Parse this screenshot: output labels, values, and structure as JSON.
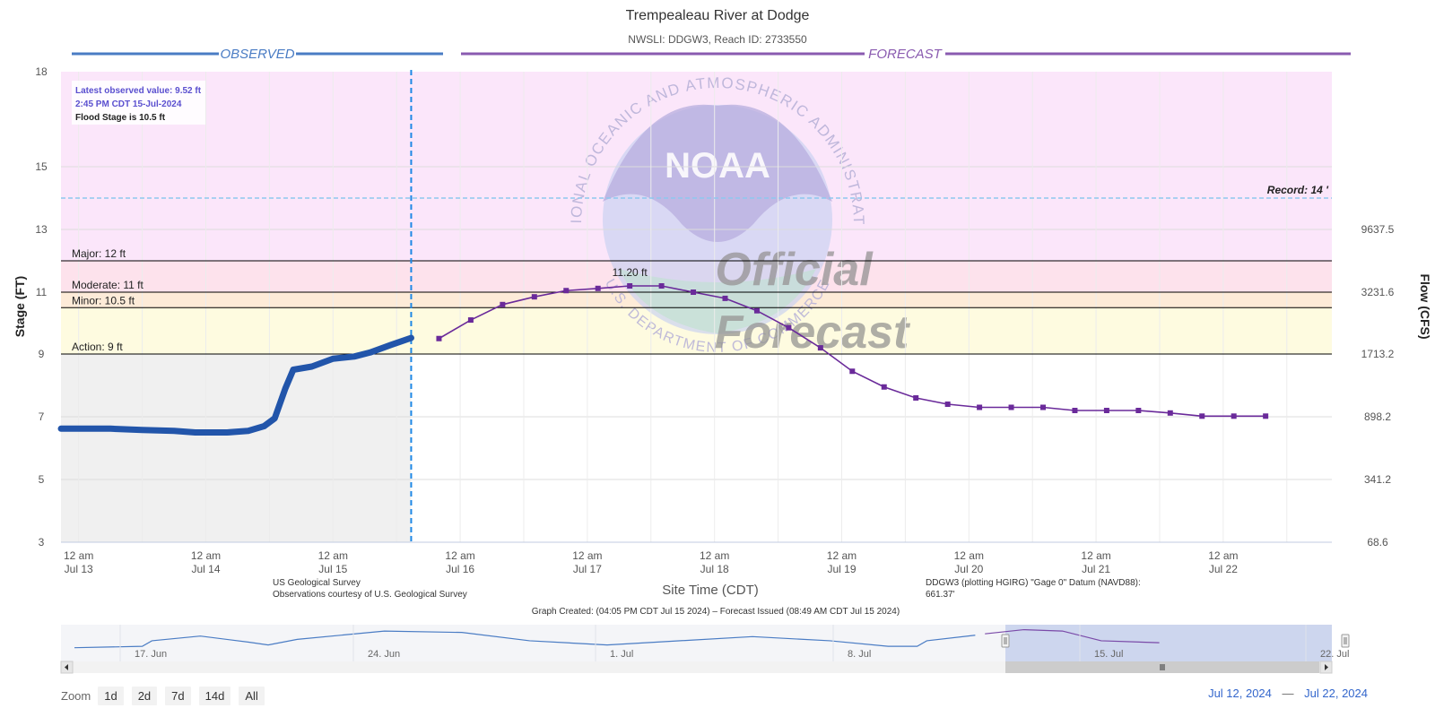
{
  "colors": {
    "observed": "#2255aa",
    "forecast": "#6a2a9a",
    "observed_label": "#4a7cc4",
    "forecast_label": "#8a5bb0",
    "record_zone": "#fbe6fa",
    "major_zone": "#fde2ec",
    "moderate_zone": "#fdebd8",
    "minor_zone": "#fefbe0",
    "observed_bg": "#f0f0f0",
    "record_line": "#8ec8ee",
    "divider": "#1e88e5",
    "info_text": "#5a4fcf"
  },
  "chart_data": {
    "type": "line",
    "title": "Trempealeau River at Dodge",
    "subtitle": "NWSLI: DDGW3, Reach ID: 2733550",
    "section_observed": "OBSERVED",
    "section_forecast": "FORECAST",
    "ylabel": "Stage (FT)",
    "y2label": "Flow (CFS)",
    "xlabel": "Site Time (CDT)",
    "ylim": [
      3,
      18
    ],
    "y_ticks": [
      3,
      5,
      7,
      9,
      11,
      13,
      15,
      18
    ],
    "y2_ticks": [
      {
        "stage": 3,
        "label": "68.6"
      },
      {
        "stage": 5,
        "label": "341.2"
      },
      {
        "stage": 7,
        "label": "898.2"
      },
      {
        "stage": 9,
        "label": "1713.2"
      },
      {
        "stage": 11,
        "label": "3231.6"
      },
      {
        "stage": 13,
        "label": "9637.5"
      }
    ],
    "x_range": [
      "Jul 12 20:40",
      "Jul 22 20:30"
    ],
    "x_ticks": [
      {
        "t": "Jul 13 00:00",
        "line1": "12 am",
        "line2": "Jul 13"
      },
      {
        "t": "Jul 14 00:00",
        "line1": "12 am",
        "line2": "Jul 14"
      },
      {
        "t": "Jul 15 00:00",
        "line1": "12 am",
        "line2": "Jul 15"
      },
      {
        "t": "Jul 16 00:00",
        "line1": "12 am",
        "line2": "Jul 16"
      },
      {
        "t": "Jul 17 00:00",
        "line1": "12 am",
        "line2": "Jul 17"
      },
      {
        "t": "Jul 18 00:00",
        "line1": "12 am",
        "line2": "Jul 18"
      },
      {
        "t": "Jul 19 00:00",
        "line1": "12 am",
        "line2": "Jul 19"
      },
      {
        "t": "Jul 20 00:00",
        "line1": "12 am",
        "line2": "Jul 20"
      },
      {
        "t": "Jul 21 00:00",
        "line1": "12 am",
        "line2": "Jul 21"
      },
      {
        "t": "Jul 22 00:00",
        "line1": "12 am",
        "line2": "Jul 22"
      }
    ],
    "now": "Jul 15 14:45",
    "record": {
      "value": 14,
      "label": "Record: 14 '"
    },
    "thresholds": [
      {
        "name": "major",
        "value": 12,
        "label": "Major: 12 ft"
      },
      {
        "name": "moderate",
        "value": 11,
        "label": "Moderate: 11 ft"
      },
      {
        "name": "minor",
        "value": 10.5,
        "label": "Minor: 10.5 ft"
      },
      {
        "name": "action",
        "value": 9,
        "label": "Action: 9 ft"
      }
    ],
    "info": {
      "line1": "Latest observed value: 9.52 ft",
      "line2": "2:45 PM CDT 15-Jul-2024",
      "line3": "Flood Stage is 10.5 ft"
    },
    "peak_label": "11.20 ft",
    "observed": {
      "name": "Observed",
      "points": [
        [
          "Jul 12 20:40",
          6.62
        ],
        [
          "Jul 13 06:00",
          6.62
        ],
        [
          "Jul 13 12:00",
          6.58
        ],
        [
          "Jul 13 18:00",
          6.55
        ],
        [
          "Jul 13 22:00",
          6.5
        ],
        [
          "Jul 14 04:00",
          6.5
        ],
        [
          "Jul 14 08:00",
          6.55
        ],
        [
          "Jul 14 11:00",
          6.7
        ],
        [
          "Jul 14 13:00",
          6.95
        ],
        [
          "Jul 14 15:00",
          7.9
        ],
        [
          "Jul 14 16:30",
          8.5
        ],
        [
          "Jul 14 20:00",
          8.6
        ],
        [
          "Jul 15 00:00",
          8.85
        ],
        [
          "Jul 15 04:00",
          8.92
        ],
        [
          "Jul 15 07:00",
          9.05
        ],
        [
          "Jul 15 11:00",
          9.3
        ],
        [
          "Jul 15 14:45",
          9.52
        ]
      ]
    },
    "forecast": {
      "name": "Forecast",
      "points": [
        [
          "Jul 15 20:00",
          9.5
        ],
        [
          "Jul 16 02:00",
          10.1
        ],
        [
          "Jul 16 08:00",
          10.6
        ],
        [
          "Jul 16 14:00",
          10.85
        ],
        [
          "Jul 16 20:00",
          11.05
        ],
        [
          "Jul 17 02:00",
          11.12
        ],
        [
          "Jul 17 08:00",
          11.2
        ],
        [
          "Jul 17 14:00",
          11.2
        ],
        [
          "Jul 17 20:00",
          11.0
        ],
        [
          "Jul 18 02:00",
          10.8
        ],
        [
          "Jul 18 08:00",
          10.4
        ],
        [
          "Jul 18 14:00",
          9.85
        ],
        [
          "Jul 18 20:00",
          9.2
        ],
        [
          "Jul 19 02:00",
          8.45
        ],
        [
          "Jul 19 08:00",
          7.95
        ],
        [
          "Jul 19 14:00",
          7.6
        ],
        [
          "Jul 19 20:00",
          7.4
        ],
        [
          "Jul 20 02:00",
          7.3
        ],
        [
          "Jul 20 08:00",
          7.3
        ],
        [
          "Jul 20 14:00",
          7.3
        ],
        [
          "Jul 20 20:00",
          7.2
        ],
        [
          "Jul 21 02:00",
          7.2
        ],
        [
          "Jul 21 08:00",
          7.2
        ],
        [
          "Jul 21 14:00",
          7.12
        ],
        [
          "Jul 21 20:00",
          7.02
        ],
        [
          "Jul 22 02:00",
          7.02
        ],
        [
          "Jul 22 08:00",
          7.02
        ]
      ]
    },
    "credits": {
      "left1": "US Geological Survey",
      "left2": "Observations courtesy of U.S. Geological Survey",
      "right1": "DDGW3 (plotting HGIRG) \"Gage 0\" Datum (NAVD88):",
      "right2": "661.37'",
      "created": "Graph Created: (04:05 PM CDT Jul 15 2024) – Forecast Issued (08:49 AM CDT Jul 15 2024)"
    },
    "watermark": {
      "agency": "NATIONAL OCEANIC AND ATMOSPHERIC ADMINISTRATION",
      "dept": "U.S. DEPARTMENT OF COMMERCE",
      "logo": "NOAA",
      "official1": "Official",
      "official2": "Forecast"
    },
    "navigator": {
      "x_labels": [
        "17. Jun",
        "24. Jun",
        "1. Jul",
        "8. Jul",
        "15. Jul",
        "22. Jul"
      ],
      "observed_points": [
        [
          0.0,
          0.3
        ],
        [
          0.07,
          0.35
        ],
        [
          0.08,
          0.55
        ],
        [
          0.13,
          0.72
        ],
        [
          0.18,
          0.5
        ],
        [
          0.2,
          0.4
        ],
        [
          0.23,
          0.6
        ],
        [
          0.32,
          0.9
        ],
        [
          0.4,
          0.85
        ],
        [
          0.47,
          0.55
        ],
        [
          0.55,
          0.4
        ],
        [
          0.6,
          0.5
        ],
        [
          0.7,
          0.7
        ],
        [
          0.78,
          0.55
        ],
        [
          0.84,
          0.35
        ],
        [
          0.87,
          0.35
        ],
        [
          0.88,
          0.55
        ],
        [
          0.93,
          0.75
        ]
      ],
      "forecast_points": [
        [
          0.94,
          0.8
        ],
        [
          0.98,
          0.95
        ],
        [
          1.02,
          0.9
        ],
        [
          1.06,
          0.55
        ],
        [
          1.12,
          0.48
        ]
      ]
    }
  },
  "zoom": {
    "label": "Zoom",
    "buttons": [
      "1d",
      "2d",
      "7d",
      "14d",
      "All"
    ]
  },
  "range": {
    "from": "Jul 12, 2024",
    "to": "Jul 22, 2024"
  }
}
